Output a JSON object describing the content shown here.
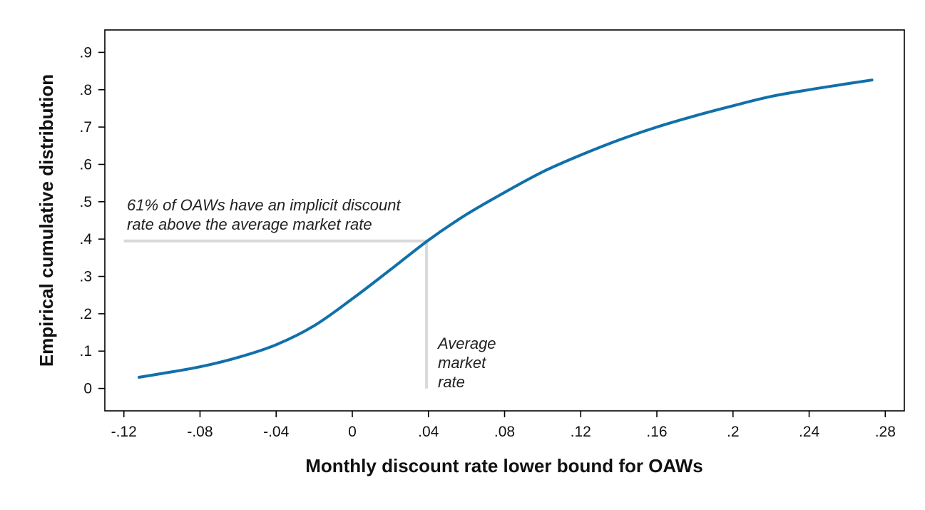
{
  "chart_data": {
    "type": "line",
    "title": "",
    "xlabel": "Monthly discount rate lower bound for OAWs",
    "ylabel": "Empirical cumulative distribution",
    "xlim": [
      -0.13,
      0.29
    ],
    "ylim": [
      -0.06,
      0.96
    ],
    "grid": false,
    "legend": "none",
    "x_ticks": [
      {
        "value": -0.12,
        "label": "-.12"
      },
      {
        "value": -0.08,
        "label": "-.08"
      },
      {
        "value": -0.04,
        "label": "-.04"
      },
      {
        "value": 0,
        "label": "0"
      },
      {
        "value": 0.04,
        "label": ".04"
      },
      {
        "value": 0.08,
        "label": ".08"
      },
      {
        "value": 0.12,
        "label": ".12"
      },
      {
        "value": 0.16,
        "label": ".16"
      },
      {
        "value": 0.2,
        "label": ".2"
      },
      {
        "value": 0.24,
        "label": ".24"
      },
      {
        "value": 0.28,
        "label": ".28"
      }
    ],
    "y_ticks": [
      {
        "value": 0,
        "label": "0"
      },
      {
        "value": 0.1,
        "label": ".1"
      },
      {
        "value": 0.2,
        "label": ".2"
      },
      {
        "value": 0.3,
        "label": ".3"
      },
      {
        "value": 0.4,
        "label": ".4"
      },
      {
        "value": 0.5,
        "label": ".5"
      },
      {
        "value": 0.6,
        "label": ".6"
      },
      {
        "value": 0.7,
        "label": ".7"
      },
      {
        "value": 0.8,
        "label": ".8"
      },
      {
        "value": 0.9,
        "label": ".9"
      }
    ],
    "series": [
      {
        "color": "#1170aa",
        "x": [
          -0.112,
          -0.1,
          -0.08,
          -0.06,
          -0.04,
          -0.02,
          0,
          0.02,
          0.04,
          0.06,
          0.08,
          0.1,
          0.12,
          0.14,
          0.16,
          0.18,
          0.2,
          0.22,
          0.24,
          0.26,
          0.273
        ],
        "y": [
          0.03,
          0.04,
          0.058,
          0.083,
          0.117,
          0.168,
          0.24,
          0.318,
          0.397,
          0.466,
          0.525,
          0.58,
          0.625,
          0.665,
          0.7,
          0.73,
          0.757,
          0.782,
          0.8,
          0.816,
          0.826
        ]
      }
    ],
    "reference_lines": {
      "color": "#d9d9d9",
      "average_market_rate_x": 0.039,
      "level_y": 0.395
    },
    "annotations": {
      "share_line1": "61% of OAWs have an implicit discount",
      "share_line2": "rate above the average market rate",
      "market_line1": "Average",
      "market_line2": "market",
      "market_line3": "rate"
    }
  }
}
